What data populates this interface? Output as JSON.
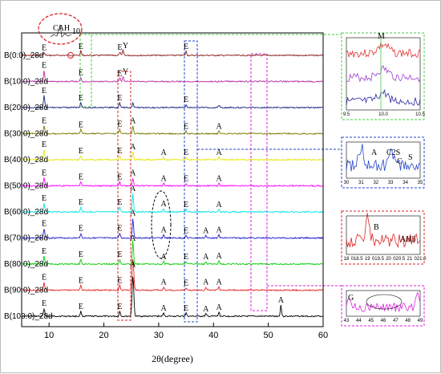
{
  "chart_data": {
    "type": "line",
    "title": "",
    "xlabel": "2θ(degree)",
    "ylabel": "",
    "xlim": [
      5,
      60
    ],
    "xticks": [
      10,
      20,
      30,
      40,
      50,
      60
    ],
    "grid": false,
    "series": [
      {
        "name": "B(0:0)_28d",
        "color": "#8b1c1c",
        "peaks": [
          {
            "x": 9.1,
            "h": 0.35,
            "l": "E"
          },
          {
            "x": 15.8,
            "h": 0.5,
            "l": "E"
          },
          {
            "x": 22.9,
            "h": 0.4,
            "l": "E"
          },
          {
            "x": 23.5,
            "h": 0.6,
            "l": "Y"
          },
          {
            "x": 35.0,
            "h": 0.5,
            "l": "E"
          }
        ]
      },
      {
        "name": "B(10:0)_28d",
        "color": "#b82aa8",
        "peaks": [
          {
            "x": 9.1,
            "h": 1.4,
            "l": "E"
          },
          {
            "x": 15.8,
            "h": 0.5,
            "l": "E"
          },
          {
            "x": 22.9,
            "h": 0.4,
            "l": "E"
          },
          {
            "x": 23.5,
            "h": 0.6,
            "l": "Y"
          }
        ]
      },
      {
        "name": "B(20:0)_28d",
        "color": "#1a237e",
        "peaks": [
          {
            "x": 9.1,
            "h": 1.5,
            "l": "E"
          },
          {
            "x": 15.8,
            "h": 0.6,
            "l": "E"
          },
          {
            "x": 22.9,
            "h": 0.6,
            "l": "E"
          },
          {
            "x": 25.3,
            "h": 0.6,
            "l": ""
          },
          {
            "x": 35.0,
            "h": 0.4,
            "l": "E"
          },
          {
            "x": 41.0,
            "h": 0.3,
            "l": ""
          }
        ]
      },
      {
        "name": "B(30:0)_28d",
        "color": "#7a7a00",
        "peaks": [
          {
            "x": 9.1,
            "h": 1.0,
            "l": "E"
          },
          {
            "x": 15.8,
            "h": 0.5,
            "l": "E"
          },
          {
            "x": 22.9,
            "h": 0.6,
            "l": "E"
          },
          {
            "x": 25.3,
            "h": 1.0,
            "l": "A"
          },
          {
            "x": 35.0,
            "h": 0.3,
            "l": "E"
          },
          {
            "x": 41.0,
            "h": 0.3,
            "l": "A"
          }
        ]
      },
      {
        "name": "B(40:0)_28d",
        "color": "#e6e600",
        "peaks": [
          {
            "x": 9.1,
            "h": 1.3,
            "l": "E"
          },
          {
            "x": 15.8,
            "h": 0.5,
            "l": "E"
          },
          {
            "x": 22.9,
            "h": 0.5,
            "l": "E"
          },
          {
            "x": 25.3,
            "h": 1.0,
            "l": "A"
          },
          {
            "x": 30.9,
            "h": 0.3,
            "l": "A"
          },
          {
            "x": 35.0,
            "h": 0.3,
            "l": "E"
          },
          {
            "x": 41.0,
            "h": 0.3,
            "l": "A"
          }
        ]
      },
      {
        "name": "B(50:0)_28d",
        "color": "#ff00ff",
        "peaks": [
          {
            "x": 9.1,
            "h": 1.0,
            "l": "E"
          },
          {
            "x": 15.8,
            "h": 0.5,
            "l": "E"
          },
          {
            "x": 22.9,
            "h": 0.5,
            "l": "E"
          },
          {
            "x": 25.3,
            "h": 1.0,
            "l": "A"
          },
          {
            "x": 30.9,
            "h": 0.3,
            "l": "A"
          },
          {
            "x": 35.0,
            "h": 0.3,
            "l": "E"
          },
          {
            "x": 41.0,
            "h": 0.3,
            "l": "A"
          }
        ]
      },
      {
        "name": "B(60:0)_28d",
        "color": "#00e5e5",
        "peaks": [
          {
            "x": 9.1,
            "h": 1.1,
            "l": "E"
          },
          {
            "x": 15.8,
            "h": 0.6,
            "l": "E"
          },
          {
            "x": 22.9,
            "h": 0.6,
            "l": "E"
          },
          {
            "x": 25.3,
            "h": 2.3,
            "l": "A"
          },
          {
            "x": 30.9,
            "h": 0.4,
            "l": "A"
          },
          {
            "x": 35.0,
            "h": 0.3,
            "l": "E"
          },
          {
            "x": 41.0,
            "h": 0.3,
            "l": "A"
          }
        ]
      },
      {
        "name": "B(70:0)_28d",
        "color": "#1a1acc",
        "peaks": [
          {
            "x": 9.1,
            "h": 1.2,
            "l": "E"
          },
          {
            "x": 15.8,
            "h": 0.6,
            "l": "E"
          },
          {
            "x": 22.9,
            "h": 0.6,
            "l": "E"
          },
          {
            "x": 25.3,
            "h": 2.5,
            "l": "A"
          },
          {
            "x": 30.9,
            "h": 0.4,
            "l": "A"
          },
          {
            "x": 35.0,
            "h": 0.3,
            "l": "E"
          },
          {
            "x": 38.6,
            "h": 0.3,
            "l": "A"
          },
          {
            "x": 41.0,
            "h": 0.4,
            "l": "A"
          }
        ]
      },
      {
        "name": "B(80:0)_28d",
        "color": "#00cc00",
        "peaks": [
          {
            "x": 9.1,
            "h": 1.0,
            "l": "E"
          },
          {
            "x": 15.8,
            "h": 0.6,
            "l": "E"
          },
          {
            "x": 22.9,
            "h": 0.6,
            "l": "E"
          },
          {
            "x": 25.3,
            "h": 3.0,
            "l": "A"
          },
          {
            "x": 30.9,
            "h": 0.3,
            "l": "A"
          },
          {
            "x": 35.0,
            "h": 0.3,
            "l": "E"
          },
          {
            "x": 38.6,
            "h": 0.3,
            "l": "A"
          },
          {
            "x": 41.0,
            "h": 0.4,
            "l": "A"
          }
        ]
      },
      {
        "name": "B(90:0)_28d",
        "color": "#e62020",
        "peaks": [
          {
            "x": 9.1,
            "h": 1.0,
            "l": "E"
          },
          {
            "x": 15.8,
            "h": 0.6,
            "l": "E"
          },
          {
            "x": 22.9,
            "h": 0.6,
            "l": "E"
          },
          {
            "x": 25.3,
            "h": 3.8,
            "l": "A"
          },
          {
            "x": 30.9,
            "h": 0.4,
            "l": "A"
          },
          {
            "x": 35.0,
            "h": 0.3,
            "l": "E"
          },
          {
            "x": 38.6,
            "h": 0.4,
            "l": "A"
          },
          {
            "x": 41.0,
            "h": 0.4,
            "l": "A"
          }
        ]
      },
      {
        "name": "B(100:0)_28d",
        "color": "#000000",
        "peaks": [
          {
            "x": 9.1,
            "h": 1.0,
            "l": "E"
          },
          {
            "x": 15.8,
            "h": 0.6,
            "l": "E"
          },
          {
            "x": 22.9,
            "h": 0.6,
            "l": "E"
          },
          {
            "x": 25.3,
            "h": 5.0,
            "l": ""
          },
          {
            "x": 30.9,
            "h": 0.4,
            "l": "A"
          },
          {
            "x": 35.0,
            "h": 0.4,
            "l": "E"
          },
          {
            "x": 38.6,
            "h": 0.3,
            "l": "A"
          },
          {
            "x": 41.0,
            "h": 0.5,
            "l": "A"
          },
          {
            "x": 52.3,
            "h": 1.4,
            "l": "A"
          }
        ]
      }
    ],
    "callout": "CAH10",
    "insets": [
      {
        "kind": "detail",
        "color": "#44cc44",
        "xticks": [
          "9.5",
          "10.0",
          "10.5"
        ],
        "labels": [
          "M"
        ]
      },
      {
        "kind": "detail",
        "color": "#2244cc",
        "xticks": [
          "30",
          "31",
          "32",
          "33",
          "34",
          "35"
        ],
        "labels": [
          "A",
          "C2S",
          "C",
          "S"
        ]
      },
      {
        "kind": "detail",
        "color": "#dd2222",
        "xticks": [
          "18",
          "018.5",
          "19",
          "019.5",
          "20",
          "020.5",
          "21",
          "021.0"
        ],
        "labels": [
          "B",
          "AH3"
        ]
      },
      {
        "kind": "detail",
        "color": "#dd22dd",
        "xticks": [
          "43",
          "44",
          "45",
          "46",
          "47",
          "48",
          "49"
        ],
        "labels": [
          "G"
        ]
      }
    ]
  }
}
